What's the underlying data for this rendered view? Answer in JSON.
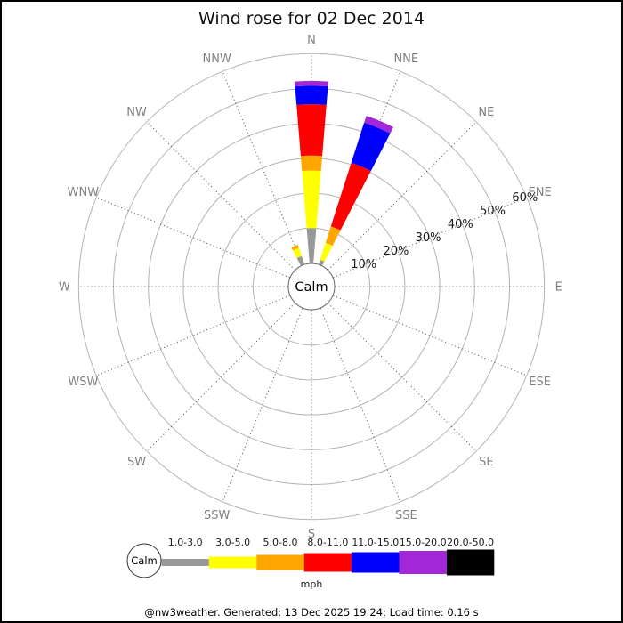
{
  "title": "Wind rose for 02 Dec 2014",
  "footer": "@nw3weather. Generated: 13 Dec 2025 19:24; Load time: 0.16 s",
  "legend": {
    "calm_label": "Calm",
    "unit_label": "mph"
  },
  "chart_data": {
    "type": "bar",
    "subtype": "windrose-polar-stacked",
    "title": "Wind rose for 02 Dec 2014",
    "center_label": "Calm",
    "unit": "mph",
    "directions": [
      "N",
      "NNE",
      "NE",
      "ENE",
      "E",
      "ESE",
      "SE",
      "SSE",
      "S",
      "SSW",
      "SW",
      "WSW",
      "W",
      "WNW",
      "NW",
      "NNW"
    ],
    "ring_percents": [
      10,
      20,
      30,
      40,
      50,
      60
    ],
    "ring_label_suffix": "%",
    "ring_label_direction_deg": 67.5,
    "radial_axis_max_percent": 60,
    "grid": "on",
    "speed_bins": [
      {
        "label": "1.0-3.0",
        "color": "#999999"
      },
      {
        "label": "3.0-5.0",
        "color": "#ffff00"
      },
      {
        "label": "5.0-8.0",
        "color": "#ffa500"
      },
      {
        "label": "8.0-11.0",
        "color": "#ff0000"
      },
      {
        "label": "11.0-15.0",
        "color": "#0000ff"
      },
      {
        "label": "15.0-20.0",
        "color": "#a228d7"
      },
      {
        "label": "20.0-50.0",
        "color": "#000000"
      }
    ],
    "series": [
      {
        "direction": "N",
        "values": [
          10.0,
          16.5,
          4.3,
          14.7,
          5.3,
          1.4,
          0
        ]
      },
      {
        "direction": "NNE",
        "values": [
          1.3,
          5.1,
          5.0,
          19.1,
          12.1,
          2.0,
          0
        ]
      },
      {
        "direction": "NNW",
        "values": [
          2.4,
          2.5,
          0.9,
          0,
          0,
          0,
          0
        ]
      }
    ],
    "colors": {
      "grid_ring": "#b3b3b3",
      "radial_line": "#4d4d4d",
      "direction_label": "#808080",
      "text": "#000000"
    }
  }
}
